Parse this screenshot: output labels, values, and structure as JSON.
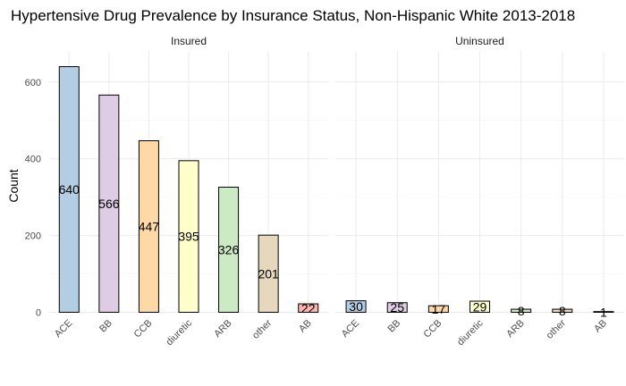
{
  "chart_data": {
    "type": "bar",
    "title": "Hypertensive Drug Prevalence by Insurance Status, Non-Hispanic White 2013-2018",
    "xlabel": "",
    "ylabel": "Count",
    "categories": [
      "ACE",
      "BB",
      "CCB",
      "diuretic",
      "ARB",
      "other",
      "AB"
    ],
    "colors": [
      "#b3cde3",
      "#decbe4",
      "#fed9a6",
      "#ffffcc",
      "#ccebc5",
      "#e5d8bd",
      "#fbb4ae"
    ],
    "ylim": [
      0,
      660
    ],
    "yticks": [
      0,
      200,
      400,
      600
    ],
    "grid": true,
    "legend": "none",
    "panels": [
      {
        "name": "Insured",
        "values": [
          640,
          566,
          447,
          395,
          326,
          201,
          22
        ]
      },
      {
        "name": "Uninsured",
        "values": [
          30,
          25,
          17,
          29,
          8,
          8,
          1
        ]
      }
    ]
  }
}
